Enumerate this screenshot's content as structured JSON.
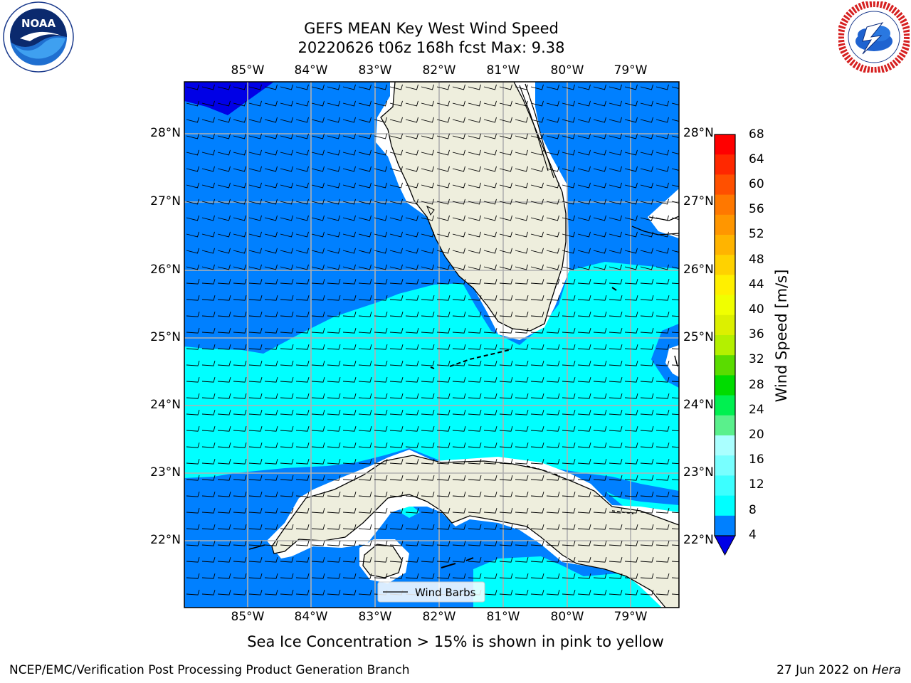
{
  "title": {
    "line1": "GEFS MEAN Key West Wind Speed",
    "line2": "20220626 t06z 168h fcst   Max: 9.38"
  },
  "logos": {
    "left": {
      "name": "noaa-logo",
      "text": "NOAA",
      "ring_text": "NATIONAL OCEANIC AND ATMOSPHERIC ADMINISTRATION · U.S. DEPARTMENT OF COMMERCE"
    },
    "right": {
      "name": "nws-logo",
      "ring_text": "NATIONAL WEATHER SERVICE"
    }
  },
  "map": {
    "region": "Florida Straits / Key West",
    "lon_labels": [
      "85°W",
      "84°W",
      "83°W",
      "82°W",
      "81°W",
      "80°W",
      "79°W"
    ],
    "lat_labels": [
      "28°N",
      "27°N",
      "26°N",
      "25°N",
      "24°N",
      "23°N",
      "22°N"
    ],
    "legend_label": "Wind Barbs",
    "colors": {
      "land": "#eeeedd",
      "band_4_8": "#0080ff",
      "band_8_12": "#00ffff",
      "band_below_4": "#0000e6",
      "coast": "#000000",
      "grid": "#b0b0b0"
    }
  },
  "colorbar": {
    "label": "Wind Speed [m/s]",
    "ticks": [
      "68",
      "64",
      "60",
      "56",
      "52",
      "48",
      "44",
      "40",
      "36",
      "32",
      "28",
      "24",
      "20",
      "16",
      "12",
      "8",
      "4"
    ],
    "colors": [
      "#ff0000",
      "#ff2800",
      "#ff5000",
      "#ff7800",
      "#ff9600",
      "#ffb400",
      "#ffd200",
      "#fff000",
      "#f0ff00",
      "#dcf000",
      "#b4f000",
      "#5adc00",
      "#00dc00",
      "#00f050",
      "#5af08c",
      "#aaffff",
      "#78ffff",
      "#3cffff",
      "#00ffff",
      "#0080ff"
    ],
    "extend_color": "#0000e6"
  },
  "footer": {
    "sea_ice": "Sea Ice Concentration > 15% is shown in pink to yellow",
    "left": "NCEP/EMC/Verification Post Processing Product Generation Branch",
    "right_date": "27 Jun 2022 on ",
    "right_host": "Hera"
  }
}
